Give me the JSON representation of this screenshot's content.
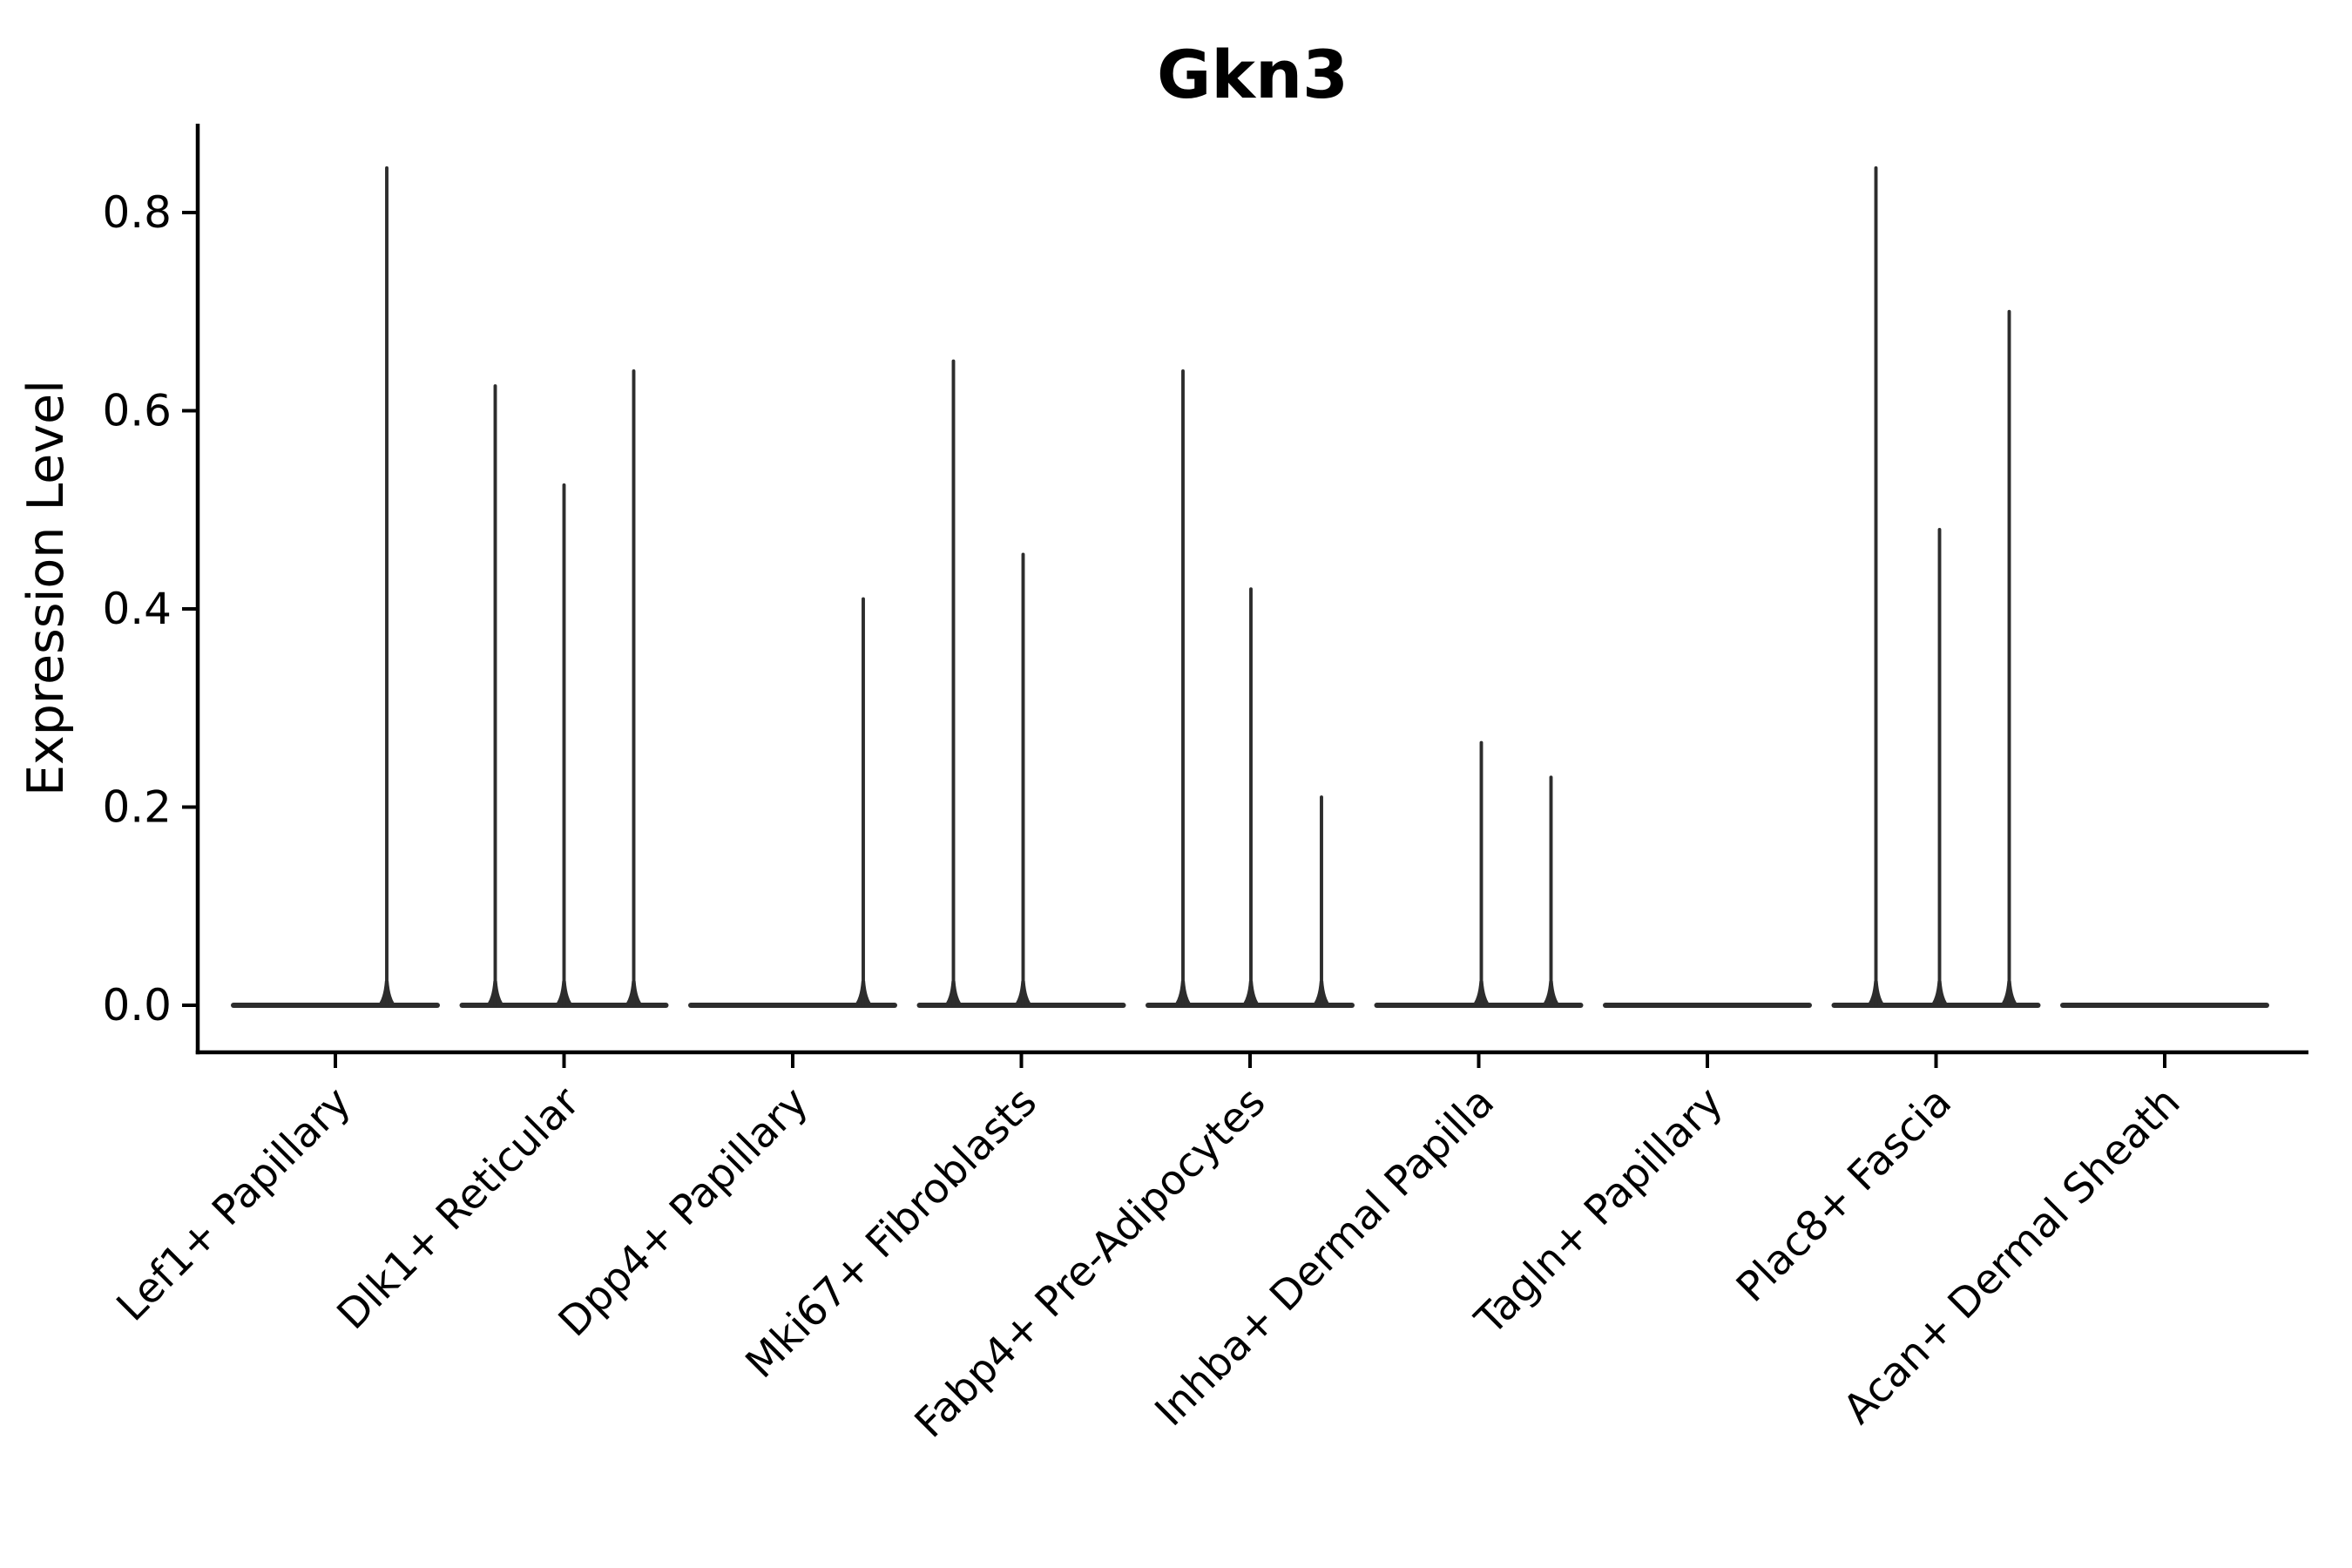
{
  "title": "Gkn3",
  "chart_data": {
    "type": "violin",
    "title": "Gkn3",
    "xlabel": "",
    "ylabel": "Expression Level",
    "ylim": [
      0,
      0.89
    ],
    "yticks": [
      0.0,
      0.2,
      0.4,
      0.6,
      0.8
    ],
    "ytick_labels": [
      "0.0",
      "0.2",
      "0.4",
      "0.6",
      "0.8"
    ],
    "grid": false,
    "legend_position": "none",
    "line_color": "#2d2d2d",
    "axis_color": "#000000",
    "background_color": "#ffffff",
    "categories": [
      "Lef1+ Papillary",
      "Dlk1+ Reticular",
      "Dpp4+ Papillary",
      "Mki67+ Fibroblasts",
      "Fabp4+ Pre-Adipocytes",
      "Inhba+ Dermal Papilla",
      "Tagln+ Papillary",
      "Plac8+ Fascia",
      "Acan+ Dermal Sheath"
    ],
    "groups": [
      {
        "label": "Lef1+ Papillary",
        "spikes": [
          {
            "value": 0.845,
            "dx": 59
          }
        ]
      },
      {
        "label": "Dlk1+ Reticular",
        "spikes": [
          {
            "value": 0.625,
            "dx": -79
          },
          {
            "value": 0.525,
            "dx": 0
          },
          {
            "value": 0.64,
            "dx": 80
          }
        ]
      },
      {
        "label": "Dpp4+ Papillary",
        "spikes": [
          {
            "value": 0.41,
            "dx": 81
          }
        ]
      },
      {
        "label": "Mki67+ Fibroblasts",
        "spikes": [
          {
            "value": 0.65,
            "dx": -78
          },
          {
            "value": 0.455,
            "dx": 2
          }
        ]
      },
      {
        "label": "Fabp4+ Pre-Adipocytes",
        "spikes": [
          {
            "value": 0.64,
            "dx": -77
          },
          {
            "value": 0.42,
            "dx": 1
          },
          {
            "value": 0.21,
            "dx": 82
          }
        ]
      },
      {
        "label": "Inhba+ Dermal Papilla",
        "spikes": [
          {
            "value": 0.265,
            "dx": 3
          },
          {
            "value": 0.23,
            "dx": 83
          }
        ]
      },
      {
        "label": "Tagln+ Papillary",
        "spikes": []
      },
      {
        "label": "Plac8+ Fascia",
        "spikes": [
          {
            "value": 0.845,
            "dx": -69
          },
          {
            "value": 0.48,
            "dx": 4
          },
          {
            "value": 0.7,
            "dx": 84
          }
        ]
      },
      {
        "label": "Acan+ Dermal Sheath",
        "spikes": []
      }
    ]
  }
}
